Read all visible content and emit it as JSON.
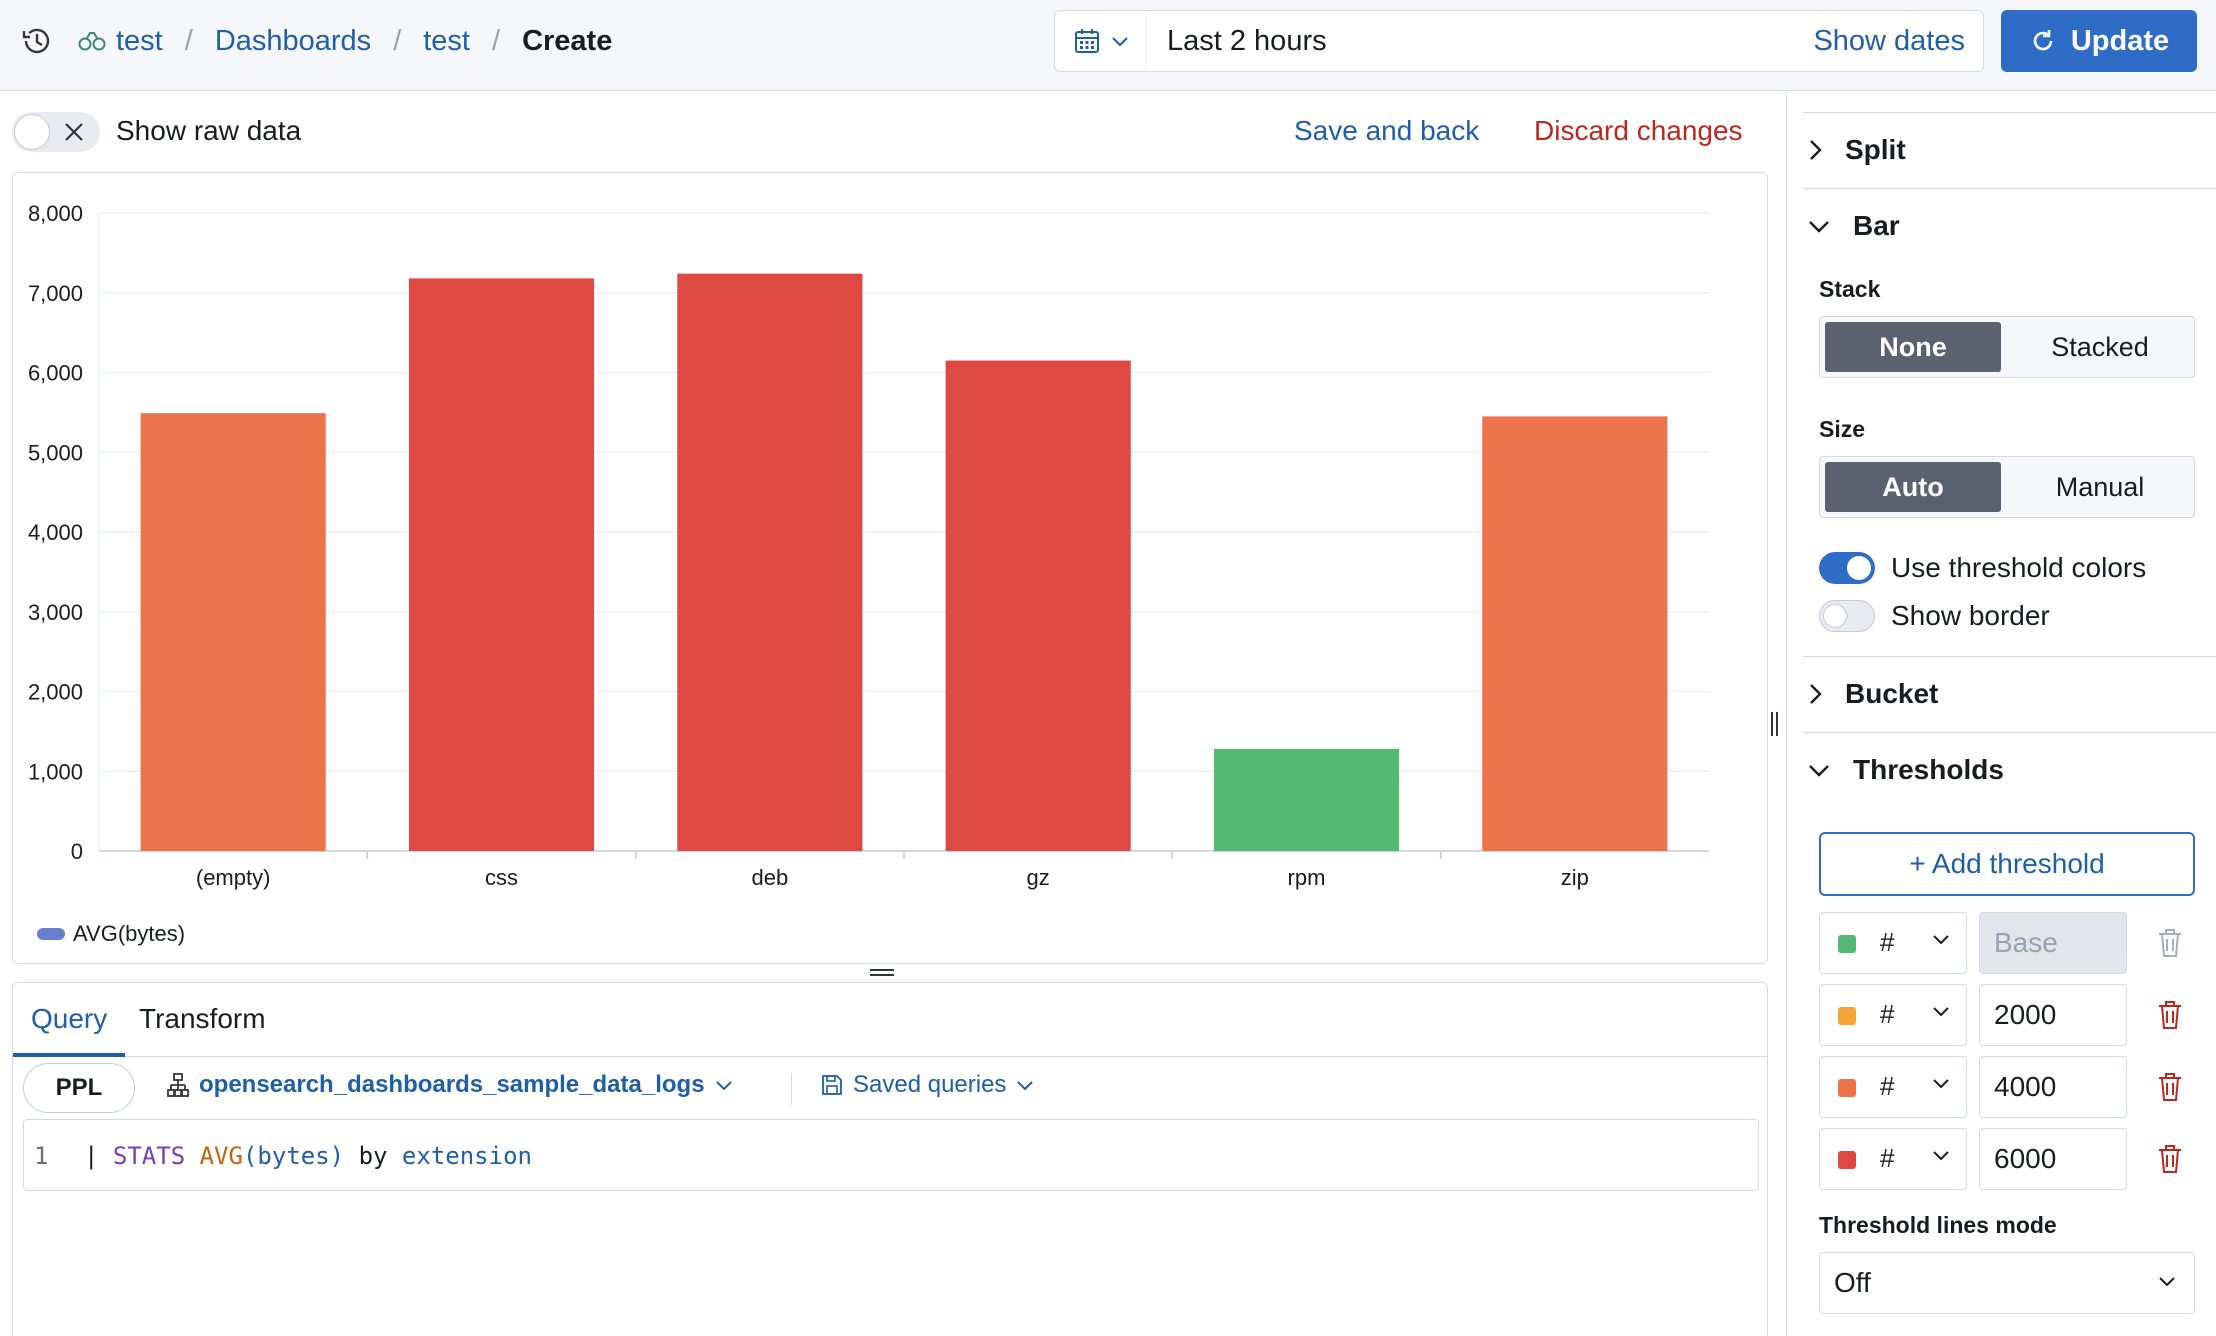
{
  "header": {
    "breadcrumbs": [
      {
        "label": "test"
      },
      {
        "label": "Dashboards"
      },
      {
        "label": "test"
      },
      {
        "label": "Create"
      }
    ],
    "separator": "/",
    "time_range": "Last 2 hours",
    "show_dates": "Show dates",
    "update_label": "Update"
  },
  "toolbar": {
    "raw_data_label": "Show raw data",
    "save_back": "Save and back",
    "discard": "Discard changes"
  },
  "colors": {
    "primary": "#2e6cc8",
    "link": "#1f5ea8",
    "danger": "#bd271e",
    "threshold_green": "#54b973",
    "threshold_yellow": "#f4a43a",
    "threshold_orange": "#ec744b",
    "threshold_red": "#de4942",
    "legend": "#6680cf"
  },
  "chart_data": {
    "type": "bar",
    "categories": [
      "(empty)",
      "css",
      "deb",
      "gz",
      "rpm",
      "zip"
    ],
    "values": [
      5490,
      7180,
      7240,
      6150,
      1280,
      5450
    ],
    "bar_colors": [
      "#ec744b",
      "#de4942",
      "#de4942",
      "#de4942",
      "#54b973",
      "#ec744b"
    ],
    "ylim": [
      0,
      8000
    ],
    "yticks": [
      "0",
      "1,000",
      "2,000",
      "3,000",
      "4,000",
      "5,000",
      "6,000",
      "7,000",
      "8,000"
    ],
    "legend": [
      {
        "name": "AVG(bytes)",
        "color": "#6680cf"
      }
    ],
    "legend_position": "bottom-left",
    "grid": true
  },
  "query": {
    "tabs": [
      "Query",
      "Transform"
    ],
    "language": "PPL",
    "index": "opensearch_dashboards_sample_data_logs",
    "saved_queries": "Saved queries",
    "line_number": "1",
    "code": {
      "pipe": "| ",
      "kw": "STATS",
      "fn": "AVG",
      "open": "(",
      "arg": "bytes",
      "close": ")",
      "by": " by ",
      "field": "extension"
    }
  },
  "sidebar": {
    "split": "Split",
    "bar": "Bar",
    "stack_label": "Stack",
    "stack_options": [
      "None",
      "Stacked"
    ],
    "size_label": "Size",
    "size_options": [
      "Auto",
      "Manual"
    ],
    "threshold_colors_label": "Use threshold colors",
    "threshold_colors_on": true,
    "show_border_label": "Show border",
    "show_border_on": false,
    "bucket": "Bucket",
    "thresholds": "Thresholds",
    "add_threshold": "+ Add threshold",
    "threshold_rows": [
      {
        "hash": "#",
        "value": "Base",
        "color": "#54b973"
      },
      {
        "hash": "#",
        "value": "2000",
        "color": "#f4a43a"
      },
      {
        "hash": "#",
        "value": "4000",
        "color": "#ec744b"
      },
      {
        "hash": "#",
        "value": "6000",
        "color": "#de4942"
      }
    ],
    "threshold_lines_label": "Threshold lines mode",
    "threshold_lines_value": "Off"
  }
}
